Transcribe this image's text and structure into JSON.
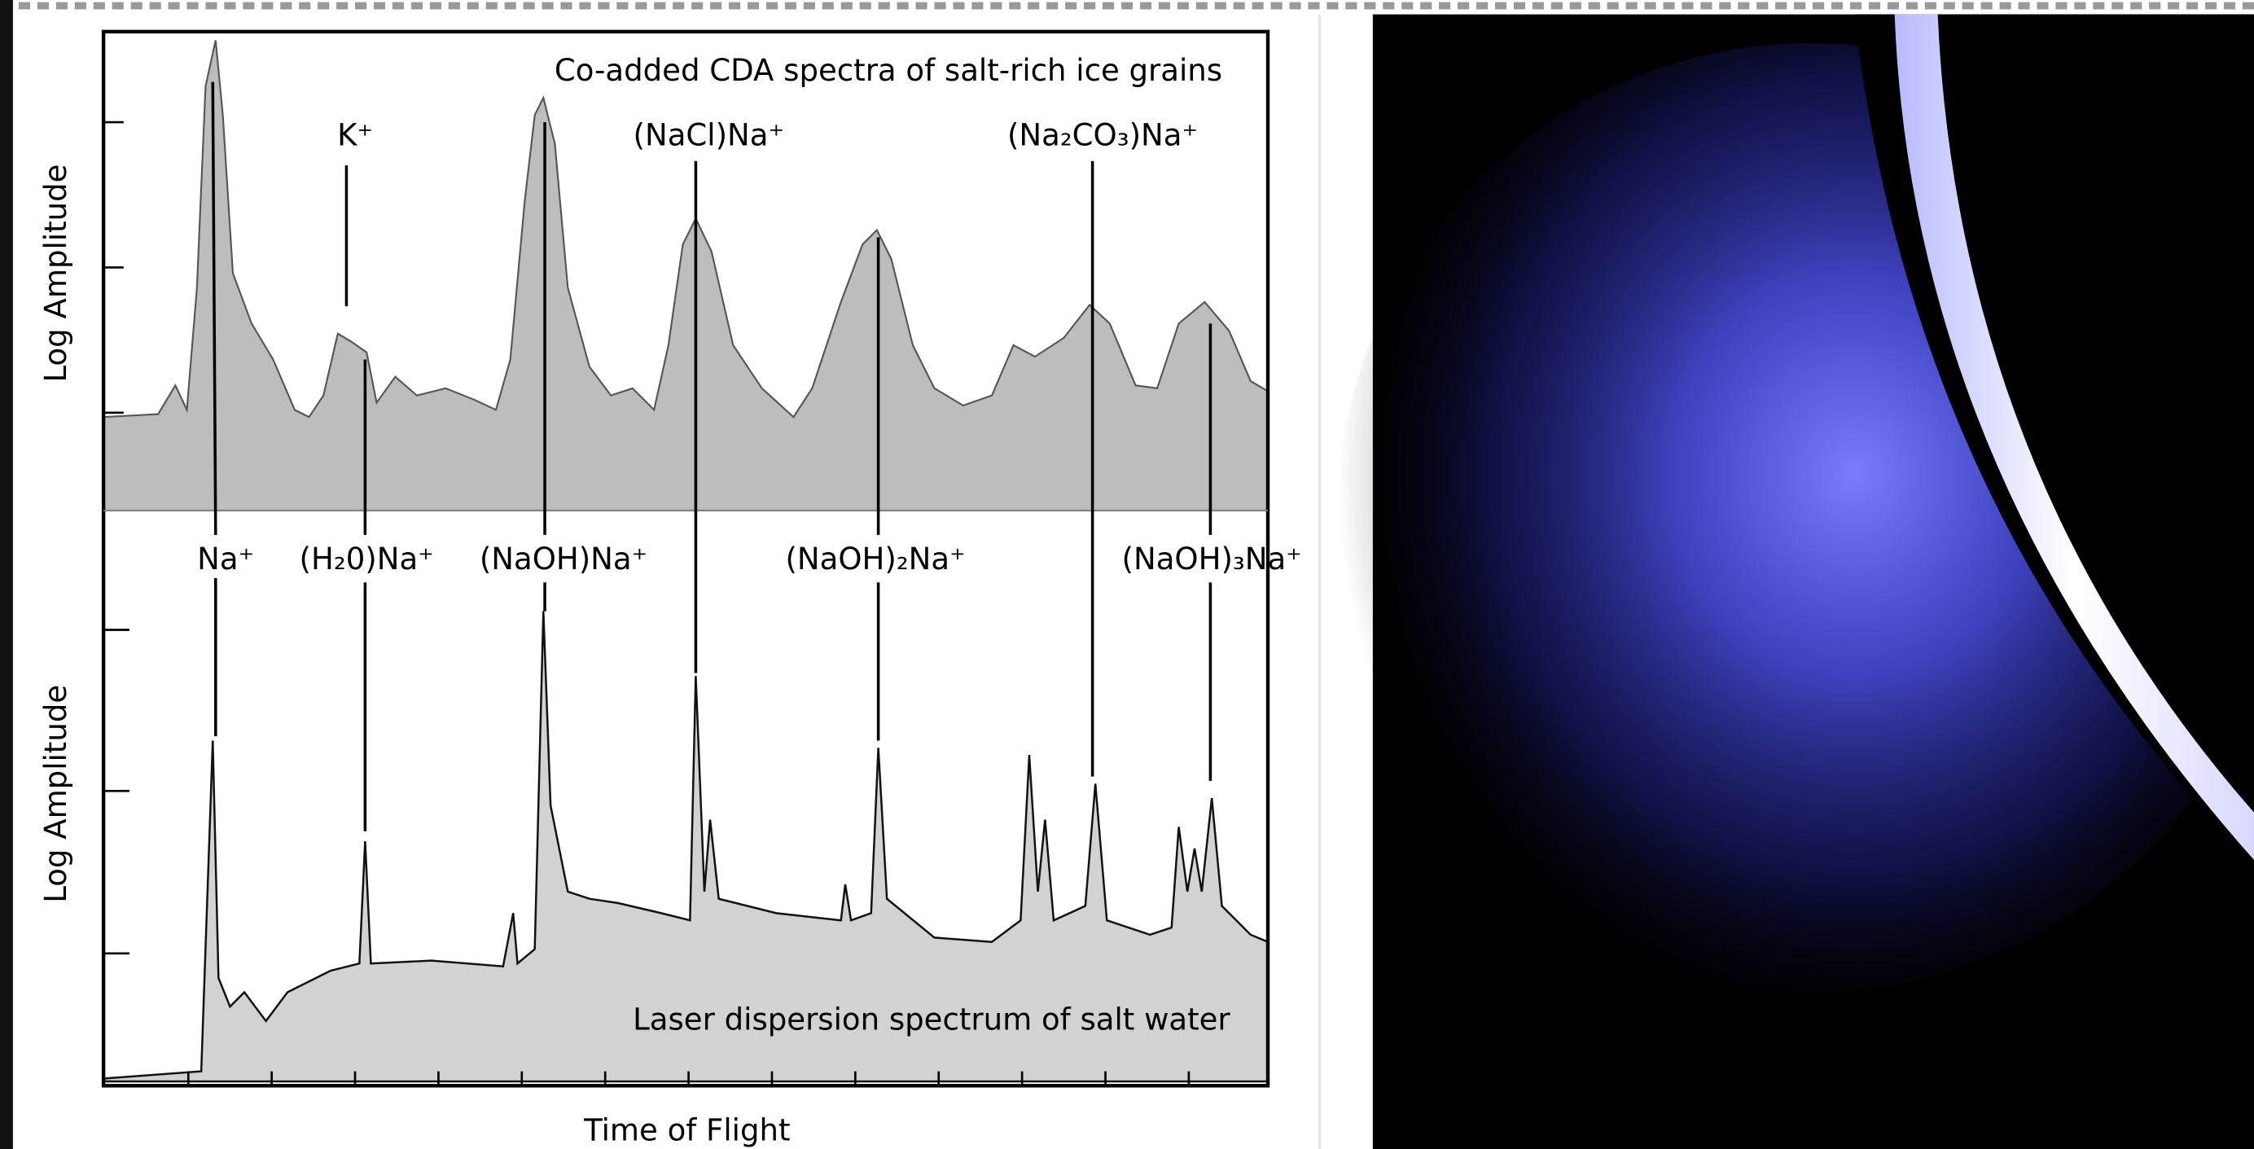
{
  "figure": {
    "top_panel": {
      "title": "Co-added CDA spectra of salt-rich ice grains",
      "y_axis_label": "Log Amplitude",
      "peak_labels": [
        "K⁺",
        "(NaCl)Na⁺",
        "(Na₂CO₃)Na⁺"
      ]
    },
    "bottom_panel": {
      "title": "Laser dispersion spectrum of salt water",
      "y_axis_label": "Log Amplitude",
      "peak_labels": [
        "Na⁺",
        "(H₂0)Na⁺",
        "(NaOH)Na⁺",
        "(NaOH)₂Na⁺",
        "(NaOH)₃Na⁺"
      ]
    },
    "x_axis_label": "Time of Flight"
  }
}
